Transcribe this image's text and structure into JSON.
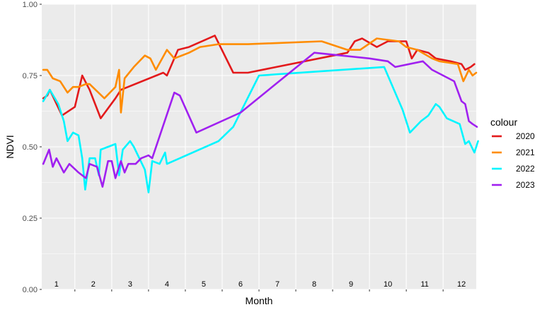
{
  "chart_data": {
    "type": "line",
    "xlabel": "Month",
    "ylabel": "NDVI",
    "ylim": [
      0,
      1
    ],
    "xlim": [
      0.6,
      12.4
    ],
    "y_ticks": [
      "0.00",
      "0.25",
      "0.50",
      "0.75",
      "1.00"
    ],
    "month_labels": [
      "1",
      "2",
      "3",
      "4",
      "5",
      "6",
      "7",
      "8",
      "9",
      "10",
      "11",
      "12"
    ],
    "grid": true,
    "legend": {
      "title": "colour",
      "position": "right"
    },
    "series": [
      {
        "name": "2020",
        "color": "#e31a1c",
        "points": [
          [
            0.64,
            0.67
          ],
          [
            0.75,
            0.68
          ],
          [
            0.82,
            0.7
          ],
          [
            1.15,
            0.61
          ],
          [
            1.5,
            0.64
          ],
          [
            1.7,
            0.75
          ],
          [
            1.9,
            0.7
          ],
          [
            2.2,
            0.6
          ],
          [
            2.6,
            0.67
          ],
          [
            2.75,
            0.7
          ],
          [
            3.9,
            0.76
          ],
          [
            4.0,
            0.75
          ],
          [
            4.3,
            0.84
          ],
          [
            4.6,
            0.85
          ],
          [
            5.3,
            0.89
          ],
          [
            5.8,
            0.76
          ],
          [
            6.2,
            0.76
          ],
          [
            8.9,
            0.83
          ],
          [
            9.1,
            0.87
          ],
          [
            9.3,
            0.88
          ],
          [
            9.7,
            0.85
          ],
          [
            10.0,
            0.87
          ],
          [
            10.5,
            0.87
          ],
          [
            10.65,
            0.81
          ],
          [
            10.8,
            0.84
          ],
          [
            11.1,
            0.83
          ],
          [
            11.3,
            0.81
          ],
          [
            11.7,
            0.8
          ],
          [
            12.0,
            0.79
          ],
          [
            12.1,
            0.77
          ],
          [
            12.25,
            0.78
          ],
          [
            12.35,
            0.79
          ]
        ]
      },
      {
        "name": "2021",
        "color": "#ff8c00",
        "points": [
          [
            0.64,
            0.77
          ],
          [
            0.75,
            0.77
          ],
          [
            0.9,
            0.74
          ],
          [
            1.1,
            0.73
          ],
          [
            1.3,
            0.69
          ],
          [
            1.45,
            0.71
          ],
          [
            1.6,
            0.71
          ],
          [
            1.8,
            0.72
          ],
          [
            1.9,
            0.72
          ],
          [
            2.3,
            0.67
          ],
          [
            2.6,
            0.71
          ],
          [
            2.7,
            0.77
          ],
          [
            2.75,
            0.62
          ],
          [
            2.85,
            0.74
          ],
          [
            3.1,
            0.78
          ],
          [
            3.4,
            0.82
          ],
          [
            3.55,
            0.81
          ],
          [
            3.7,
            0.77
          ],
          [
            4.0,
            0.84
          ],
          [
            4.2,
            0.81
          ],
          [
            4.6,
            0.83
          ],
          [
            4.9,
            0.85
          ],
          [
            5.4,
            0.86
          ],
          [
            6.2,
            0.86
          ],
          [
            8.2,
            0.87
          ],
          [
            8.9,
            0.84
          ],
          [
            9.25,
            0.84
          ],
          [
            9.7,
            0.88
          ],
          [
            10.3,
            0.87
          ],
          [
            10.5,
            0.85
          ],
          [
            10.8,
            0.84
          ],
          [
            11.2,
            0.81
          ],
          [
            11.4,
            0.8
          ],
          [
            11.9,
            0.79
          ],
          [
            12.05,
            0.73
          ],
          [
            12.2,
            0.77
          ],
          [
            12.3,
            0.75
          ],
          [
            12.4,
            0.76
          ]
        ]
      },
      {
        "name": "2022",
        "color": "#00f5ff",
        "points": [
          [
            0.64,
            0.66
          ],
          [
            0.82,
            0.7
          ],
          [
            1.05,
            0.65
          ],
          [
            1.2,
            0.59
          ],
          [
            1.3,
            0.52
          ],
          [
            1.45,
            0.55
          ],
          [
            1.6,
            0.54
          ],
          [
            1.7,
            0.46
          ],
          [
            1.78,
            0.35
          ],
          [
            1.9,
            0.46
          ],
          [
            2.05,
            0.46
          ],
          [
            2.15,
            0.4
          ],
          [
            2.2,
            0.49
          ],
          [
            2.6,
            0.51
          ],
          [
            2.7,
            0.4
          ],
          [
            2.8,
            0.49
          ],
          [
            3.0,
            0.52
          ],
          [
            3.1,
            0.5
          ],
          [
            3.4,
            0.42
          ],
          [
            3.5,
            0.34
          ],
          [
            3.6,
            0.45
          ],
          [
            3.8,
            0.44
          ],
          [
            3.95,
            0.48
          ],
          [
            4.0,
            0.44
          ],
          [
            5.4,
            0.52
          ],
          [
            5.8,
            0.57
          ],
          [
            6.5,
            0.75
          ],
          [
            9.9,
            0.78
          ],
          [
            10.4,
            0.63
          ],
          [
            10.6,
            0.55
          ],
          [
            10.9,
            0.59
          ],
          [
            11.1,
            0.61
          ],
          [
            11.3,
            0.65
          ],
          [
            11.4,
            0.64
          ],
          [
            11.6,
            0.6
          ],
          [
            11.95,
            0.58
          ],
          [
            12.1,
            0.51
          ],
          [
            12.2,
            0.52
          ],
          [
            12.35,
            0.48
          ],
          [
            12.45,
            0.52
          ]
        ]
      },
      {
        "name": "2023",
        "color": "#a020f0",
        "points": [
          [
            0.64,
            0.44
          ],
          [
            0.8,
            0.49
          ],
          [
            0.9,
            0.43
          ],
          [
            1.0,
            0.46
          ],
          [
            1.2,
            0.41
          ],
          [
            1.35,
            0.44
          ],
          [
            1.6,
            0.41
          ],
          [
            1.8,
            0.39
          ],
          [
            1.9,
            0.44
          ],
          [
            2.1,
            0.43
          ],
          [
            2.25,
            0.36
          ],
          [
            2.4,
            0.45
          ],
          [
            2.5,
            0.45
          ],
          [
            2.6,
            0.39
          ],
          [
            2.75,
            0.45
          ],
          [
            2.85,
            0.41
          ],
          [
            2.95,
            0.44
          ],
          [
            3.15,
            0.44
          ],
          [
            3.3,
            0.46
          ],
          [
            3.5,
            0.47
          ],
          [
            3.6,
            0.46
          ],
          [
            4.2,
            0.69
          ],
          [
            4.35,
            0.68
          ],
          [
            4.8,
            0.55
          ],
          [
            6.0,
            0.62
          ],
          [
            8.0,
            0.83
          ],
          [
            9.5,
            0.81
          ],
          [
            10.0,
            0.8
          ],
          [
            10.2,
            0.78
          ],
          [
            10.95,
            0.8
          ],
          [
            11.2,
            0.77
          ],
          [
            11.8,
            0.73
          ],
          [
            12.0,
            0.66
          ],
          [
            12.1,
            0.65
          ],
          [
            12.2,
            0.59
          ],
          [
            12.3,
            0.58
          ],
          [
            12.42,
            0.57
          ]
        ]
      }
    ]
  }
}
